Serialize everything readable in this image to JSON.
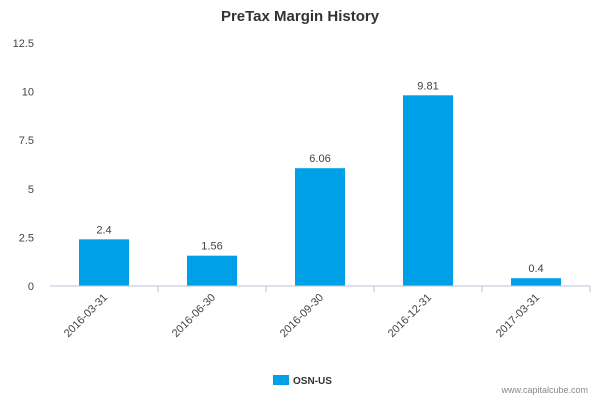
{
  "chart_data": {
    "type": "bar",
    "title": "PreTax Margin History",
    "categories": [
      "2016-03-31",
      "2016-06-30",
      "2016-09-30",
      "2016-12-31",
      "2017-03-31"
    ],
    "series": [
      {
        "name": "OSN-US",
        "values": [
          2.4,
          1.56,
          6.06,
          9.81,
          0.4
        ],
        "color": "#00a0e8"
      }
    ],
    "data_labels": [
      "2.4",
      "1.56",
      "6.06",
      "9.81",
      "0.4"
    ],
    "ylim": [
      0,
      12.5
    ],
    "yticks": [
      "0",
      "2.5",
      "5",
      "7.5",
      "10",
      "12.5"
    ],
    "grid": false,
    "legend_position": "bottom-center"
  },
  "credit": "www.capitalcube.com"
}
